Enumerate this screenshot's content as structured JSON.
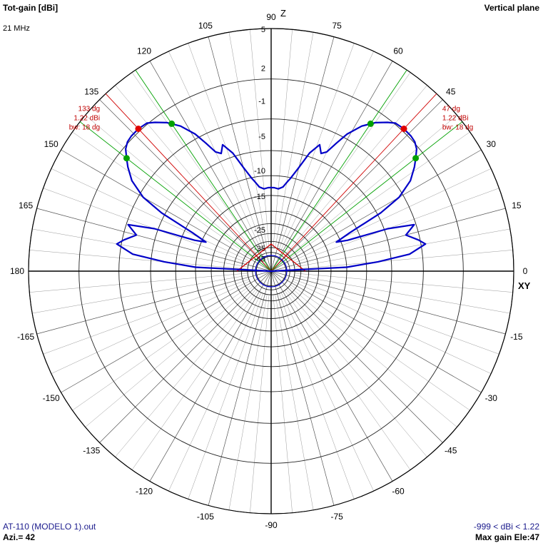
{
  "header": {
    "title": "Tot-gain [dBi]",
    "frequency": "21 MHz",
    "plane": "Vertical plane"
  },
  "footer": {
    "file": "AT-110 (MODELO 1).out",
    "azimuth": "Azi.= 42",
    "range": "-999 < dBi < 1.22",
    "max_gain": "Max gain Ele:47"
  },
  "axis": {
    "z_label": "Z",
    "xy_label": "XY"
  },
  "colors": {
    "pattern": "#0000c8",
    "max_lines": "#d00000",
    "bw_lines": "#00a000",
    "grid": "#000000"
  },
  "chart_data": {
    "type": "polar",
    "title": "Tot-gain [dBi]",
    "angle_unit": "deg",
    "angle_ticks": [
      "90",
      "75",
      "60",
      "45",
      "30",
      "15",
      "0",
      "-15",
      "-30",
      "-45",
      "-60",
      "-75",
      "-90",
      "-105",
      "-120",
      "-135",
      "-150",
      "-165",
      "180",
      "165",
      "150",
      "135",
      "120",
      "105"
    ],
    "angle_tick_values": [
      90,
      75,
      60,
      45,
      30,
      15,
      0,
      -15,
      -30,
      -45,
      -60,
      -75,
      -90,
      -105,
      -120,
      -135,
      -150,
      -165,
      180,
      165,
      150,
      135,
      120,
      105
    ],
    "radial_ticks": [
      "5",
      "2",
      "-1",
      "-5",
      "-10",
      "-15",
      "-25",
      "-35",
      "-45"
    ],
    "radial_tick_values": [
      5,
      2,
      -1,
      -5,
      -10,
      -15,
      -25,
      -35,
      -45
    ],
    "series": [
      {
        "angles": [
          0,
          3,
          5,
          7,
          10,
          12,
          15,
          18,
          20,
          22,
          24,
          26,
          28,
          30,
          33,
          36,
          38,
          40,
          42,
          44,
          47,
          50,
          52,
          55,
          58,
          61,
          63,
          65,
          67,
          69,
          72,
          75,
          78,
          80,
          82,
          85,
          88,
          90
        ],
        "values": [
          -99,
          -15,
          -9,
          -4.5,
          -2.5,
          -3.2,
          -4.5,
          -3.2,
          -6.5,
          -13.5,
          -16,
          -12.5,
          -6.5,
          -3.5,
          -1.5,
          -0.4,
          0.2,
          0.8,
          1.1,
          1.2,
          1.22,
          1.1,
          0.7,
          0,
          -1,
          -2.5,
          -4,
          -5.5,
          -6,
          -5,
          -6.5,
          -9,
          -11,
          -12,
          -13,
          -13.5,
          -13.3,
          -13.3
        ]
      }
    ],
    "max_gain": {
      "elevation": 47,
      "gain": 1.22,
      "beamwidth": 18
    },
    "annotations_right": [
      "47 dg",
      "1.22 dBi",
      "bw: 18 dg"
    ],
    "annotations_left": [
      "133 dg",
      "1.22 dBi",
      "bw: 18 dg"
    ]
  }
}
